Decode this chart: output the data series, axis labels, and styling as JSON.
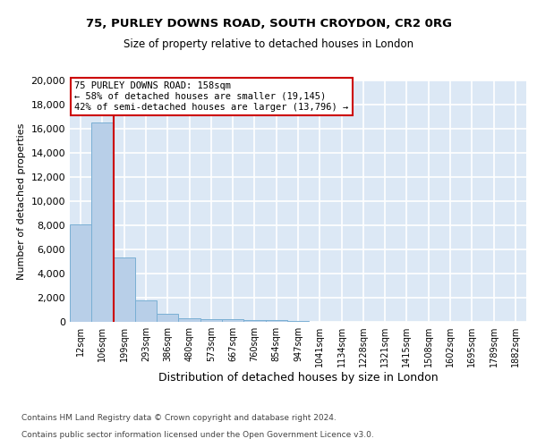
{
  "title_line1": "75, PURLEY DOWNS ROAD, SOUTH CROYDON, CR2 0RG",
  "title_line2": "Size of property relative to detached houses in London",
  "xlabel": "Distribution of detached houses by size in London",
  "ylabel": "Number of detached properties",
  "bar_color": "#b8cfe8",
  "bar_edge_color": "#7aafd4",
  "background_color": "#dce8f5",
  "grid_color": "#ffffff",
  "bin_labels": [
    "12sqm",
    "106sqm",
    "199sqm",
    "293sqm",
    "386sqm",
    "480sqm",
    "573sqm",
    "667sqm",
    "760sqm",
    "854sqm",
    "947sqm",
    "1041sqm",
    "1134sqm",
    "1228sqm",
    "1321sqm",
    "1415sqm",
    "1508sqm",
    "1602sqm",
    "1695sqm",
    "1789sqm",
    "1882sqm"
  ],
  "bar_heights": [
    8050,
    16500,
    5300,
    1800,
    650,
    320,
    220,
    200,
    175,
    120,
    60,
    30,
    20,
    15,
    10,
    8,
    6,
    5,
    4,
    3,
    2
  ],
  "ylim": [
    0,
    20000
  ],
  "yticks": [
    0,
    2000,
    4000,
    6000,
    8000,
    10000,
    12000,
    14000,
    16000,
    18000,
    20000
  ],
  "annotation_title": "75 PURLEY DOWNS ROAD: 158sqm",
  "annotation_line1": "← 58% of detached houses are smaller (19,145)",
  "annotation_line2": "42% of semi-detached houses are larger (13,796) →",
  "annotation_box_color": "#ffffff",
  "annotation_box_edge": "#cc0000",
  "red_line_color": "#cc0000",
  "footer_line1": "Contains HM Land Registry data © Crown copyright and database right 2024.",
  "footer_line2": "Contains public sector information licensed under the Open Government Licence v3.0."
}
